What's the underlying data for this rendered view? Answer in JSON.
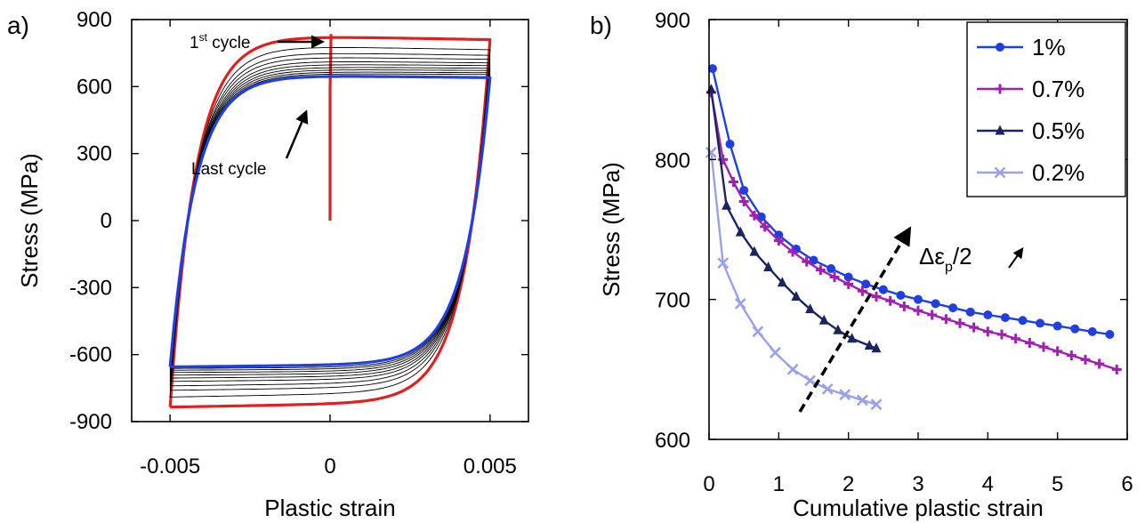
{
  "chart_data": [
    {
      "panel_label": "a)",
      "type": "line",
      "xlabel": "Plastic strain",
      "ylabel": "Stress (MPa)",
      "xlim": [
        -0.0062,
        0.0062
      ],
      "ylim": [
        -900,
        900
      ],
      "xticks": [
        -0.005,
        0,
        0.005
      ],
      "xtick_labels": [
        "-0.005",
        "0",
        "0.005"
      ],
      "yticks": [
        -900,
        -600,
        -300,
        0,
        300,
        600,
        900
      ],
      "ytick_labels": [
        "-900",
        "-600",
        "-300",
        "0",
        "300",
        "600",
        "900"
      ],
      "grid": false,
      "loop_strain_amplitude": 0.005,
      "series": [
        {
          "role": "first",
          "color": "#e02020",
          "initial_loading": [
            [
              0,
              0
            ],
            [
              0,
              590
            ],
            [
              3e-05,
              835
            ]
          ],
          "upper_start": 835,
          "upper_end": 810,
          "lower_start": -810,
          "lower_end": -835
        },
        {
          "role": "intermediate",
          "color": "#000000",
          "upper_start": [
            790,
            760,
            740,
            720,
            705,
            692,
            680,
            670,
            662
          ],
          "upper_end": [
            765,
            740,
            722,
            706,
            694,
            682,
            672,
            662,
            654
          ],
          "lower_start": [
            -765,
            -740,
            -722,
            -706,
            -694,
            -682,
            -672,
            -662,
            -654
          ],
          "lower_end": [
            -790,
            -760,
            -740,
            -720,
            -705,
            -692,
            -680,
            -670,
            -662
          ]
        },
        {
          "role": "last",
          "color": "#1f3fe0",
          "upper_start": 655,
          "upper_end": 640,
          "lower_start": -640,
          "lower_end": -655
        }
      ],
      "annotations": [
        {
          "text": "1",
          "superscript": "st",
          "suffix": " cycle"
        },
        {
          "text": "Last cycle"
        }
      ]
    },
    {
      "panel_label": "b)",
      "type": "line",
      "xlabel": "Cumulative plastic strain",
      "ylabel": "Stress (MPa)",
      "xlim": [
        0,
        6
      ],
      "ylim": [
        600,
        900
      ],
      "xticks": [
        0,
        1,
        2,
        3,
        4,
        5,
        6
      ],
      "xtick_labels": [
        "0",
        "1",
        "2",
        "3",
        "4",
        "5",
        "6"
      ],
      "yticks": [
        600,
        700,
        800,
        900
      ],
      "ytick_labels": [
        "600",
        "700",
        "800",
        "900"
      ],
      "grid": false,
      "legend_position": "top-right",
      "series": [
        {
          "name": "1%",
          "color": "#1f3fe0",
          "marker": "circle",
          "x": [
            0.05,
            0.3,
            0.5,
            0.75,
            1.0,
            1.25,
            1.5,
            1.75,
            2.0,
            2.25,
            2.5,
            2.75,
            3.0,
            3.25,
            3.5,
            3.75,
            4.0,
            4.25,
            4.5,
            4.75,
            5.0,
            5.25,
            5.5,
            5.75
          ],
          "y": [
            865,
            811,
            778,
            759,
            746,
            736,
            728,
            722,
            716,
            711,
            707,
            703,
            700,
            697,
            694,
            691,
            689,
            687,
            685,
            683,
            681,
            679,
            677,
            675
          ]
        },
        {
          "name": "0.7%",
          "color": "#a020b0",
          "marker": "plus",
          "x": [
            0.03,
            0.2,
            0.35,
            0.5,
            0.65,
            0.8,
            1.0,
            1.2,
            1.4,
            1.6,
            1.8,
            2.0,
            2.2,
            2.4,
            2.6,
            2.8,
            3.0,
            3.2,
            3.4,
            3.6,
            3.8,
            4.0,
            4.2,
            4.4,
            4.6,
            4.8,
            5.0,
            5.2,
            5.4,
            5.6,
            5.85
          ],
          "y": [
            848,
            800,
            784,
            770,
            760,
            752,
            742,
            734,
            727,
            721,
            716,
            711,
            706,
            702,
            699,
            695,
            692,
            689,
            686,
            683,
            680,
            677,
            675,
            672,
            669,
            666,
            663,
            660,
            657,
            654,
            650
          ]
        },
        {
          "name": "0.5%",
          "color": "#1a2560",
          "marker": "triangle",
          "x": [
            0.03,
            0.25,
            0.45,
            0.65,
            0.85,
            1.05,
            1.25,
            1.45,
            1.65,
            1.85,
            2.05,
            2.3,
            2.4
          ],
          "y": [
            850,
            767,
            748,
            734,
            723,
            712,
            702,
            693,
            685,
            678,
            672,
            667,
            665
          ]
        },
        {
          "name": "0.2%",
          "color": "#9aa0ea",
          "marker": "x",
          "x": [
            0.03,
            0.2,
            0.45,
            0.7,
            0.95,
            1.2,
            1.45,
            1.7,
            1.95,
            2.2,
            2.4
          ],
          "y": [
            805,
            726,
            697,
            677,
            662,
            650,
            642,
            636,
            632,
            628,
            625
          ]
        }
      ],
      "annotations": [
        {
          "text": "Δε",
          "subscript": "p",
          "suffix": "/2"
        }
      ]
    }
  ]
}
